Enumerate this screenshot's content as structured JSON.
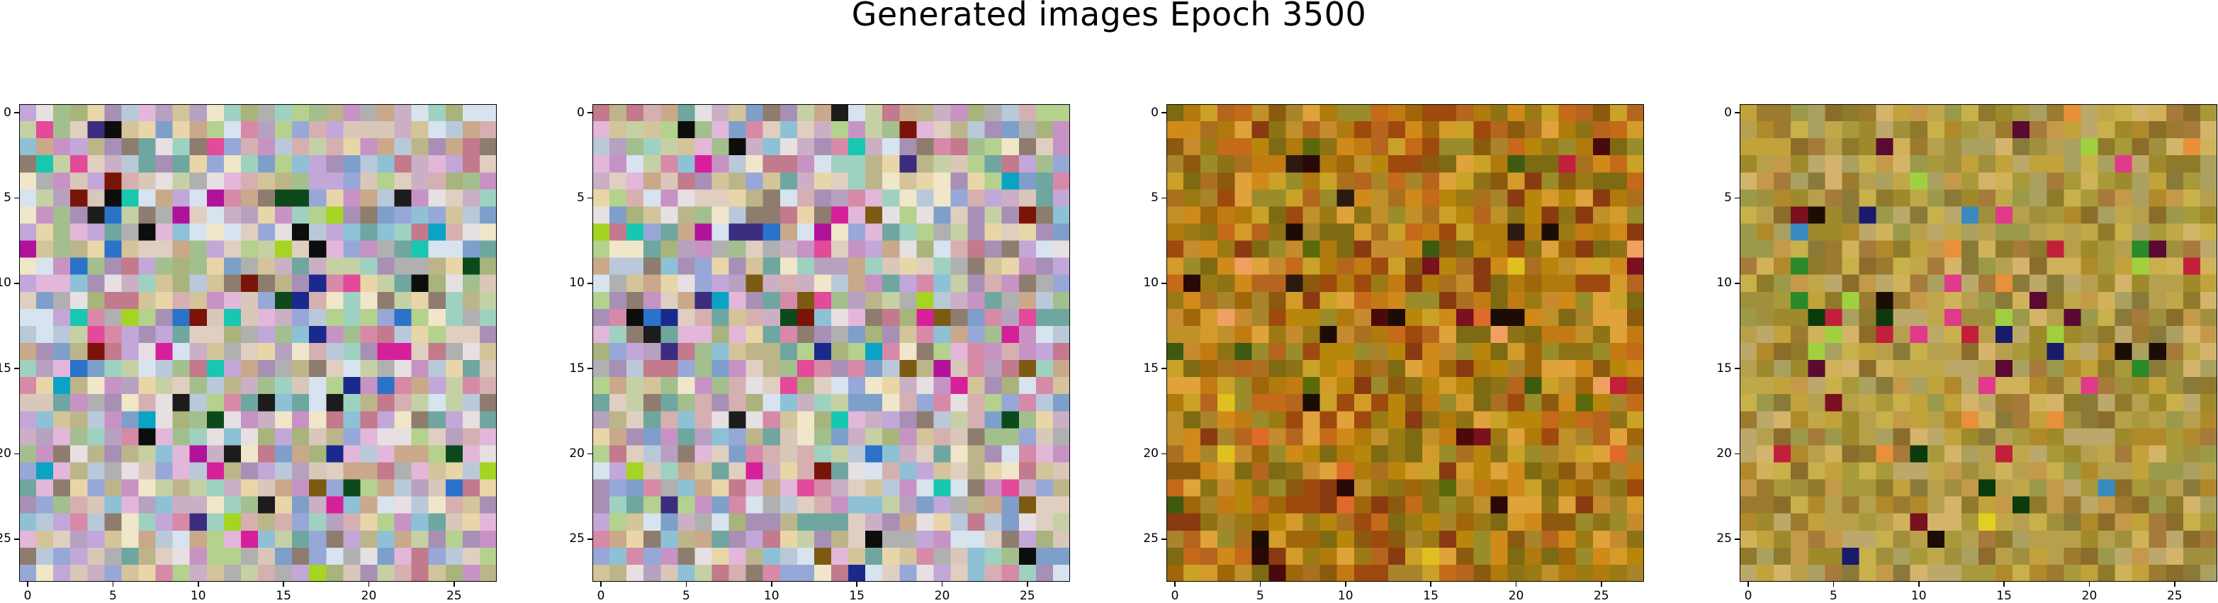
{
  "figure": {
    "title": "Generated images Epoch 3500"
  },
  "chart_data": [
    {
      "type": "heatmap",
      "panel": 1,
      "grid_size": [
        28,
        28
      ],
      "palette": "rgb image, pastel",
      "x_ticks": [
        "0",
        "5",
        "10",
        "15",
        "20",
        "25"
      ],
      "y_ticks": [
        "0",
        "5",
        "10",
        "15",
        "20",
        "25"
      ]
    },
    {
      "type": "heatmap",
      "panel": 2,
      "grid_size": [
        28,
        28
      ],
      "palette": "rgb image, pastel",
      "x_ticks": [
        "0",
        "5",
        "10",
        "15",
        "20",
        "25"
      ],
      "y_ticks": [
        "0",
        "5",
        "10",
        "15",
        "20",
        "25"
      ]
    },
    {
      "type": "heatmap",
      "panel": 3,
      "grid_size": [
        28,
        28
      ],
      "palette": "rgb image, orange-brown",
      "x_ticks": [
        "0",
        "5",
        "10",
        "15",
        "20",
        "25"
      ],
      "y_ticks": [
        "0",
        "5",
        "10",
        "15",
        "20",
        "25"
      ]
    },
    {
      "type": "heatmap",
      "panel": 4,
      "grid_size": [
        28,
        28
      ],
      "palette": "rgb image, olive-mustard",
      "x_ticks": [
        "0",
        "5",
        "10",
        "15",
        "20",
        "25"
      ],
      "y_ticks": [
        "0",
        "5",
        "10",
        "15",
        "20",
        "25"
      ]
    }
  ]
}
